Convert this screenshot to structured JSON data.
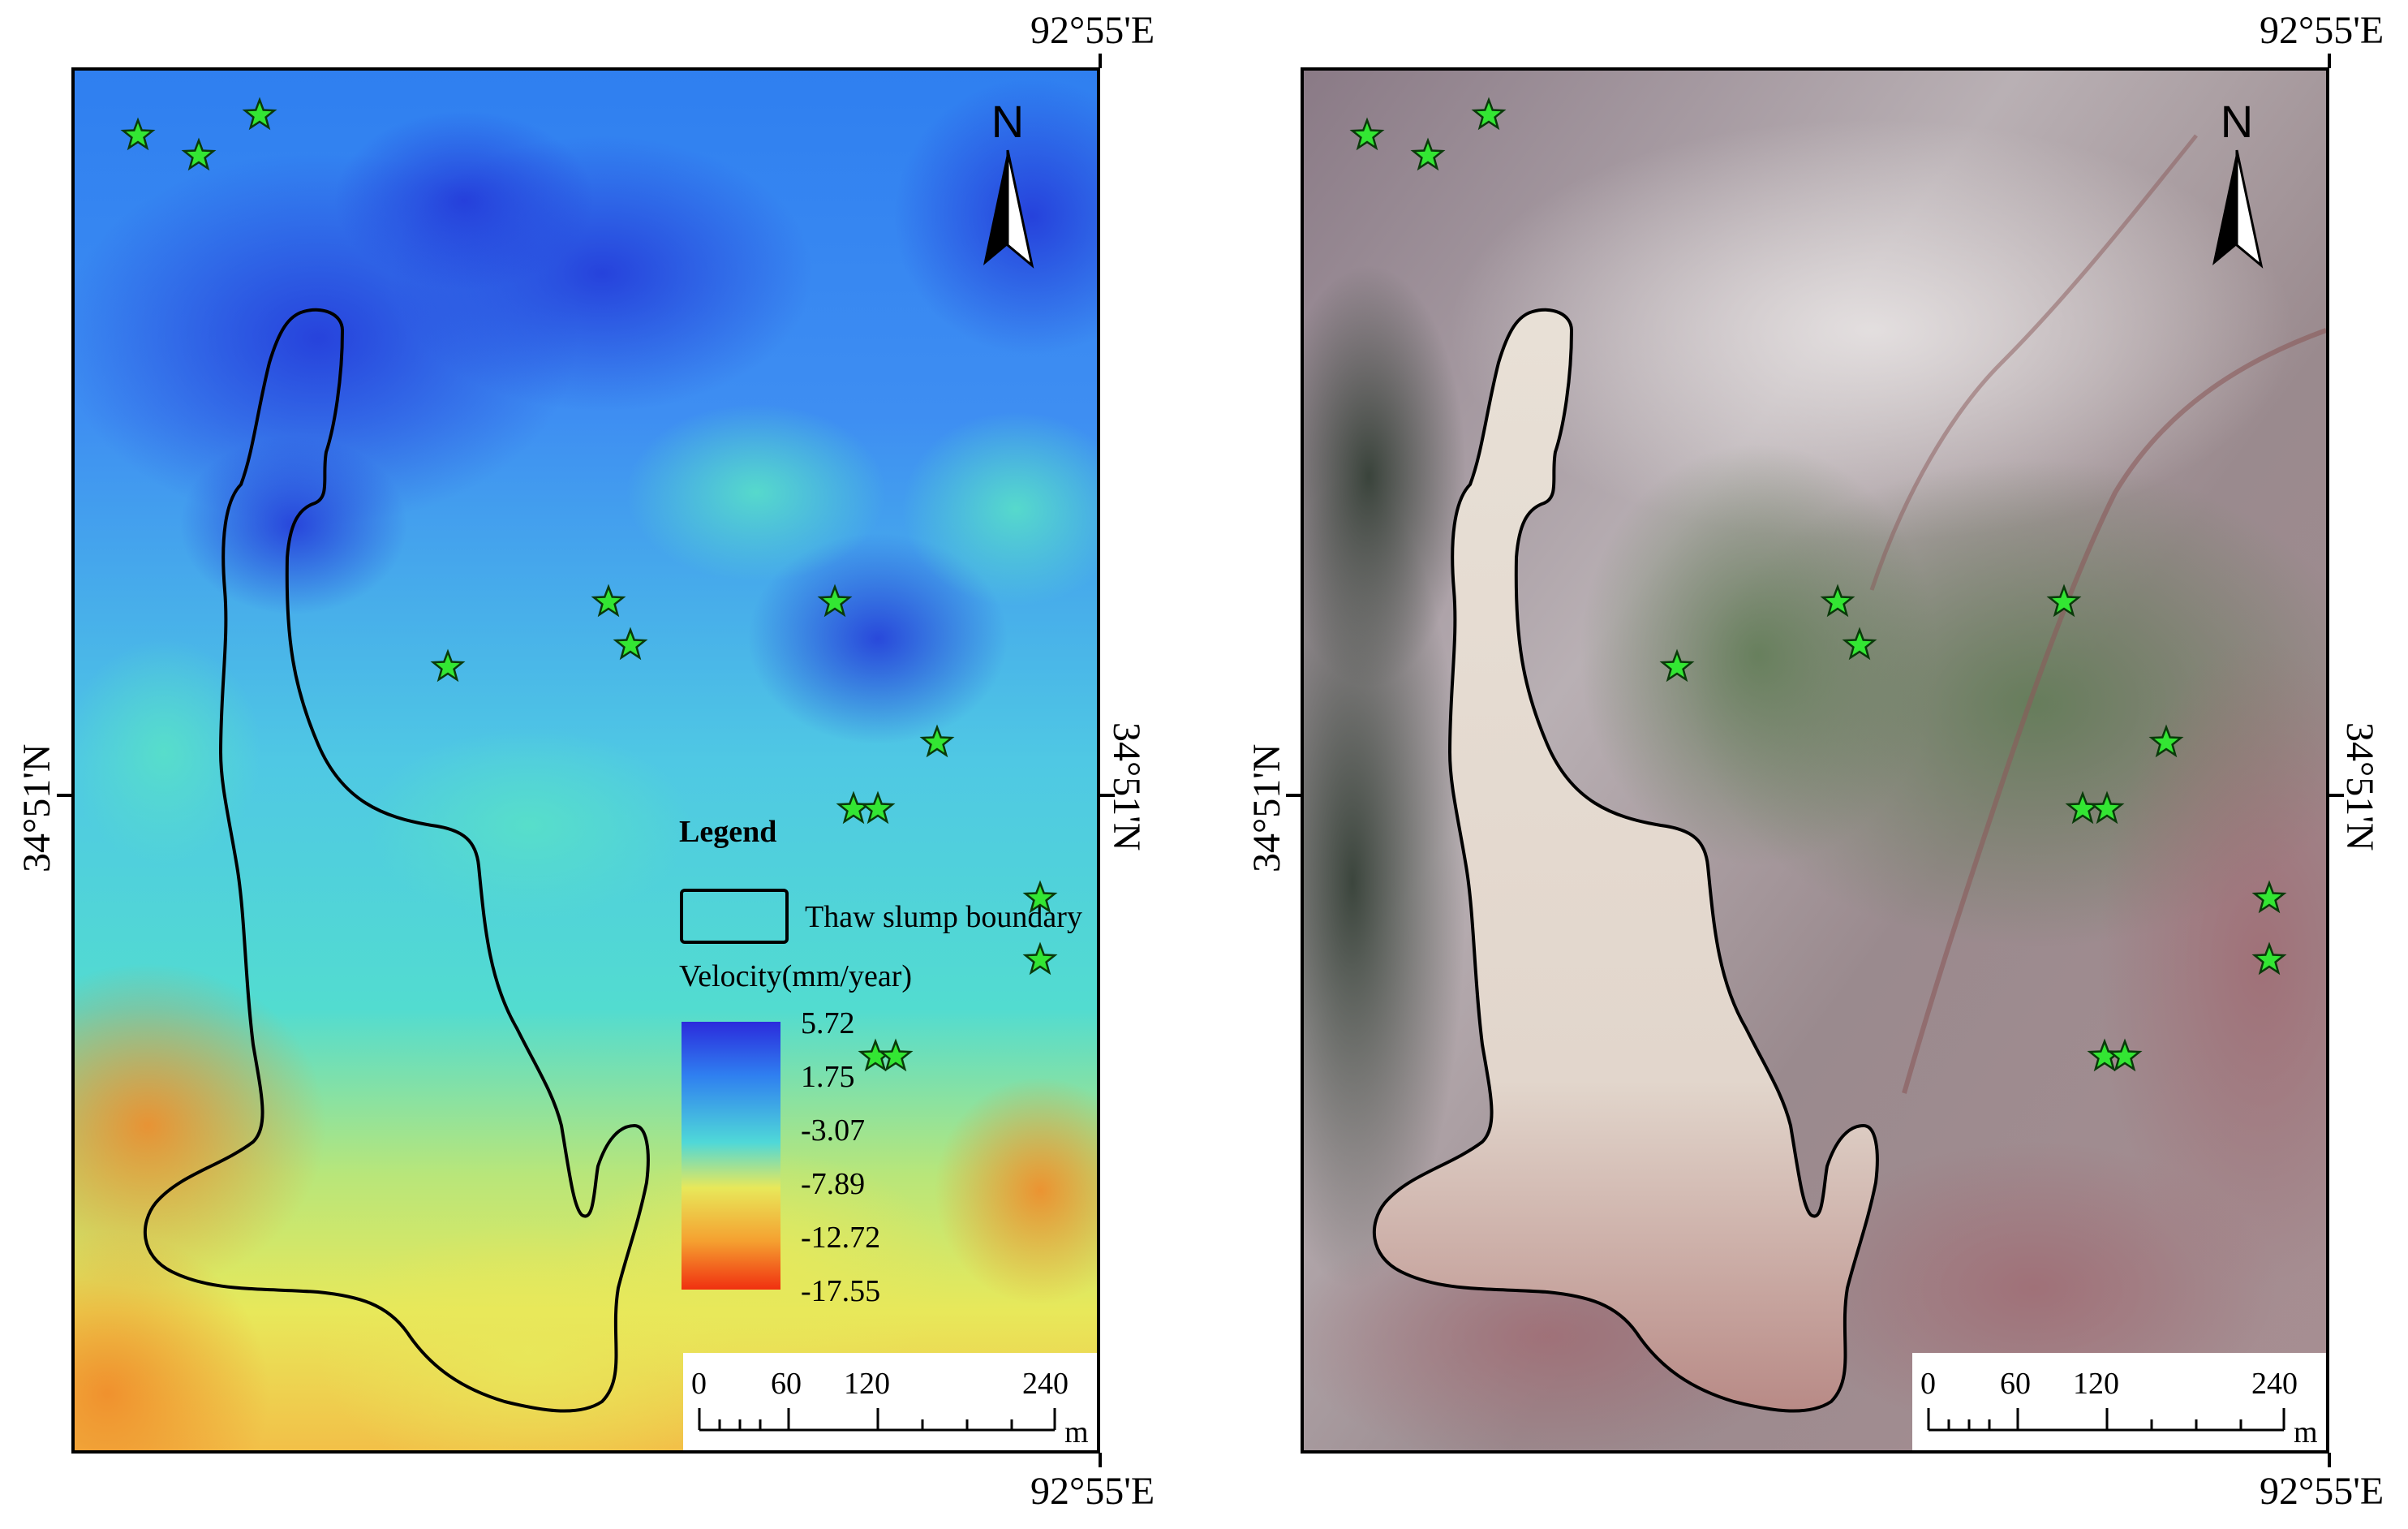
{
  "coordinates": {
    "longitude_label": "92°55'E",
    "latitude_label": "34°51'N"
  },
  "left_panel": {
    "legend": {
      "title": "Legend",
      "boundary_label": "Thaw slump boundary",
      "velocity_title": "Velocity(mm/year)",
      "colorbar_values": [
        "5.72",
        "1.75",
        "-3.07",
        "-7.89",
        "-12.72",
        "-17.55"
      ]
    },
    "colorbar_colors": [
      "#2b2bdc",
      "#2f7ff0",
      "#4fd8d8",
      "#e8e85a",
      "#f5a030",
      "#f03010"
    ],
    "north_arrow_label": "N",
    "scale_bar": {
      "ticks": [
        "0",
        "60",
        "120",
        "240"
      ],
      "unit": "m"
    }
  },
  "right_panel": {
    "north_arrow_label": "N",
    "scale_bar": {
      "ticks": [
        "0",
        "60",
        "120",
        "240"
      ],
      "unit": "m"
    }
  },
  "marker": {
    "type": "star",
    "fill": "#33e633",
    "stroke": "#0a3a0a"
  }
}
